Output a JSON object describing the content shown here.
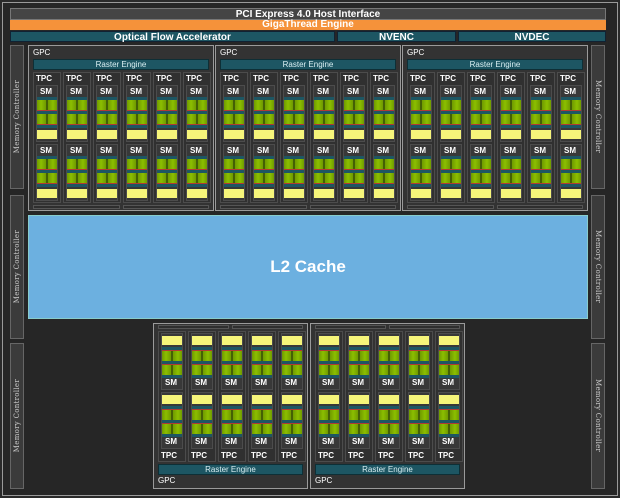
{
  "pci": "PCI Express 4.0 Host Interface",
  "gigathread": "GigaThread Engine",
  "engines": {
    "ofa": "Optical Flow Accelerator",
    "nvenc": "NVENC",
    "nvdec": "NVDEC"
  },
  "l2": "L2 Cache",
  "memory_controller": "Memory Controller",
  "labels": {
    "gpc": "GPC",
    "raster": "Raster Engine",
    "tpc": "TPC",
    "sm": "SM"
  },
  "colors": {
    "gigathread": "#f5923a",
    "engine": "#1d5663",
    "l2": "#6cb0e0",
    "sm_core": "#8cbf00",
    "sm_cache": "#f6f57a"
  },
  "gpcs": [
    {
      "tpcs": 6,
      "orientation": "top"
    },
    {
      "tpcs": 6,
      "orientation": "top"
    },
    {
      "tpcs": 6,
      "orientation": "top"
    },
    {
      "tpcs": 5,
      "orientation": "bottom"
    },
    {
      "tpcs": 5,
      "orientation": "bottom"
    }
  ]
}
